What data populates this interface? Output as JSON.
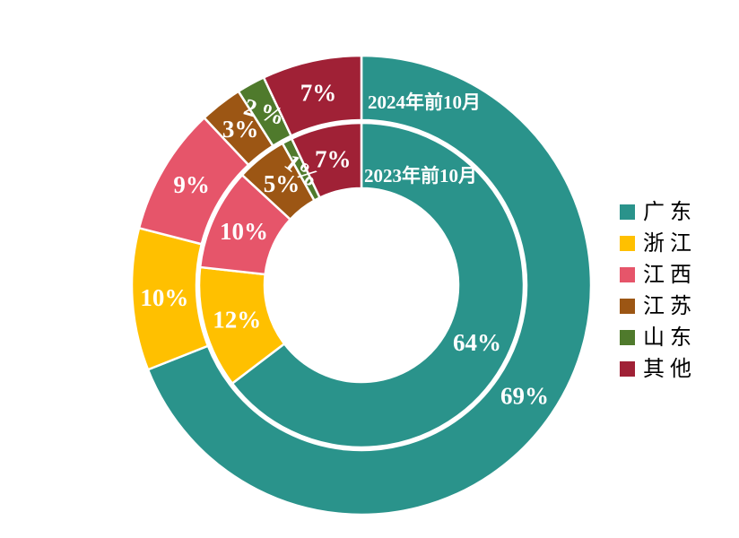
{
  "page": {
    "background_color": "#FFFFFF"
  },
  "chart_data": {
    "type": "donut",
    "title": "",
    "direction": "clockwise",
    "start_angle_deg": 0,
    "legend_position": "right",
    "categories": [
      "广 东",
      "浙 江",
      "江 西",
      "江 苏",
      "山 东",
      "其 他"
    ],
    "colors": [
      "#2A938B",
      "#FFC000",
      "#E6556A",
      "#9C5614",
      "#4F7A2C",
      "#A02136"
    ],
    "separator_color": "#FFFFFF",
    "data_label_color": "#FFFFFF",
    "rings": [
      {
        "name": "2024年前10月",
        "position": "outer",
        "values": [
          69,
          10,
          9,
          3,
          2,
          7
        ],
        "labels": [
          "69%",
          "10%",
          "9%",
          "3%",
          "2%",
          "7%"
        ]
      },
      {
        "name": "2023年前10月",
        "position": "inner",
        "values": [
          64,
          12,
          10,
          5,
          1,
          7
        ],
        "labels": [
          "64%",
          "12%",
          "10%",
          "5%",
          "1%",
          "7%"
        ]
      }
    ]
  }
}
